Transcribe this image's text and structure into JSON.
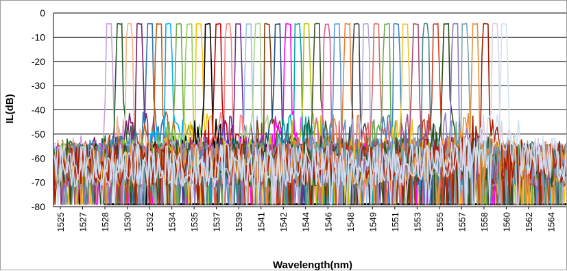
{
  "chart_data": {
    "type": "line",
    "title": "",
    "xlabel": "Wavelength(nm)",
    "ylabel": "IL(dB)",
    "xlim": [
      1525,
      1565.5
    ],
    "ylim": [
      -80,
      0
    ],
    "grid": "horizontal",
    "legend": "none",
    "x_tick_labels": [
      "1525",
      "1527",
      "1528",
      "1530",
      "1532",
      "1534",
      "1535",
      "1537",
      "1539",
      "1541",
      "1542",
      "1544",
      "1546",
      "1548",
      "1549",
      "1551",
      "1553",
      "1555",
      "1557",
      "1558",
      "1560",
      "1562",
      "1564"
    ],
    "y_ticks": [
      0,
      -10,
      -20,
      -30,
      -40,
      -50,
      -60,
      -70,
      -80
    ],
    "y_tick_labels": [
      "0",
      "-10",
      "-20",
      "-30",
      "-40",
      "-50",
      "-60",
      "-70",
      "-80"
    ],
    "channel_passband_db": -4.5,
    "noise_floor_db": -79,
    "series": [
      {
        "center_nm": 1529.4,
        "color": "#c9a0dc"
      },
      {
        "center_nm": 1530.2,
        "color": "#1f5f2a"
      },
      {
        "center_nm": 1531.0,
        "color": "#f4b183"
      },
      {
        "center_nm": 1531.8,
        "color": "#7a1f6e"
      },
      {
        "center_nm": 1532.6,
        "color": "#2e75b6"
      },
      {
        "center_nm": 1533.3,
        "color": "#c55a11"
      },
      {
        "center_nm": 1534.1,
        "color": "#00b0f0"
      },
      {
        "center_nm": 1534.9,
        "color": "#70ad47"
      },
      {
        "center_nm": 1535.7,
        "color": "#92d050"
      },
      {
        "center_nm": 1536.5,
        "color": "#ffc000"
      },
      {
        "center_nm": 1537.2,
        "color": "#000000"
      },
      {
        "center_nm": 1538.0,
        "color": "#c00000"
      },
      {
        "center_nm": 1538.8,
        "color": "#ff7c80"
      },
      {
        "center_nm": 1539.6,
        "color": "#7030a0"
      },
      {
        "center_nm": 1540.4,
        "color": "#9dc3e6"
      },
      {
        "center_nm": 1541.1,
        "color": "#a9d18e"
      },
      {
        "center_nm": 1541.9,
        "color": "#843c0c"
      },
      {
        "center_nm": 1542.7,
        "color": "#1f4e79"
      },
      {
        "center_nm": 1543.5,
        "color": "#ff00ff"
      },
      {
        "center_nm": 1544.3,
        "color": "#00a5a5"
      },
      {
        "center_nm": 1545.0,
        "color": "#bfbf00"
      },
      {
        "center_nm": 1545.8,
        "color": "#385723"
      },
      {
        "center_nm": 1546.6,
        "color": "#d65f9b"
      },
      {
        "center_nm": 1547.4,
        "color": "#5b9bd5"
      },
      {
        "center_nm": 1548.2,
        "color": "#ed7d31"
      },
      {
        "center_nm": 1548.9,
        "color": "#404040"
      },
      {
        "center_nm": 1549.7,
        "color": "#b4a7d6"
      },
      {
        "center_nm": 1550.5,
        "color": "#e06666"
      },
      {
        "center_nm": 1551.3,
        "color": "#6aa84f"
      },
      {
        "center_nm": 1552.1,
        "color": "#3d85c6"
      },
      {
        "center_nm": 1552.8,
        "color": "#f1c232"
      },
      {
        "center_nm": 1553.6,
        "color": "#a64d79"
      },
      {
        "center_nm": 1554.4,
        "color": "#45818e"
      },
      {
        "center_nm": 1555.2,
        "color": "#cc4125"
      },
      {
        "center_nm": 1556.0,
        "color": "#274e13"
      },
      {
        "center_nm": 1556.7,
        "color": "#8e7cc3"
      },
      {
        "center_nm": 1557.5,
        "color": "#76a5af"
      },
      {
        "center_nm": 1558.3,
        "color": "#e69138"
      },
      {
        "center_nm": 1559.1,
        "color": "#a61c00"
      },
      {
        "center_nm": 1559.9,
        "color": "#d9d2e9"
      },
      {
        "center_nm": 1560.6,
        "color": "#cfe2f3"
      }
    ]
  }
}
